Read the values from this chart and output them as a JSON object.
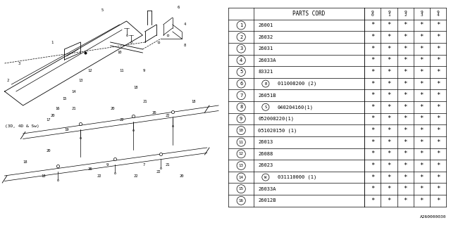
{
  "diagram_label": "A260000030",
  "rows": [
    {
      "num": "1",
      "part": "26001",
      "special": ""
    },
    {
      "num": "2",
      "part": "26032",
      "special": ""
    },
    {
      "num": "3",
      "part": "26031",
      "special": ""
    },
    {
      "num": "4",
      "part": "26033A",
      "special": ""
    },
    {
      "num": "5",
      "part": "83321",
      "special": ""
    },
    {
      "num": "6",
      "part": "011008200 (2)",
      "special": "B"
    },
    {
      "num": "7",
      "part": "26051B",
      "special": ""
    },
    {
      "num": "8",
      "part": "040204160(1)",
      "special": "S"
    },
    {
      "num": "9",
      "part": "052008220(1)",
      "special": ""
    },
    {
      "num": "10",
      "part": "051020150 (1)",
      "special": ""
    },
    {
      "num": "11",
      "part": "26013",
      "special": ""
    },
    {
      "num": "12",
      "part": "26088",
      "special": ""
    },
    {
      "num": "13",
      "part": "26023",
      "special": ""
    },
    {
      "num": "14",
      "part": "031110000 (1)",
      "special": "W"
    },
    {
      "num": "15",
      "part": "26033A",
      "special": ""
    },
    {
      "num": "16",
      "part": "26012B",
      "special": ""
    }
  ],
  "star_cols": 5,
  "years": [
    "9\n0",
    "9\n1",
    "9\n2",
    "9\n3",
    "9\n4"
  ],
  "bg_color": "#ffffff",
  "line_color": "#000000"
}
